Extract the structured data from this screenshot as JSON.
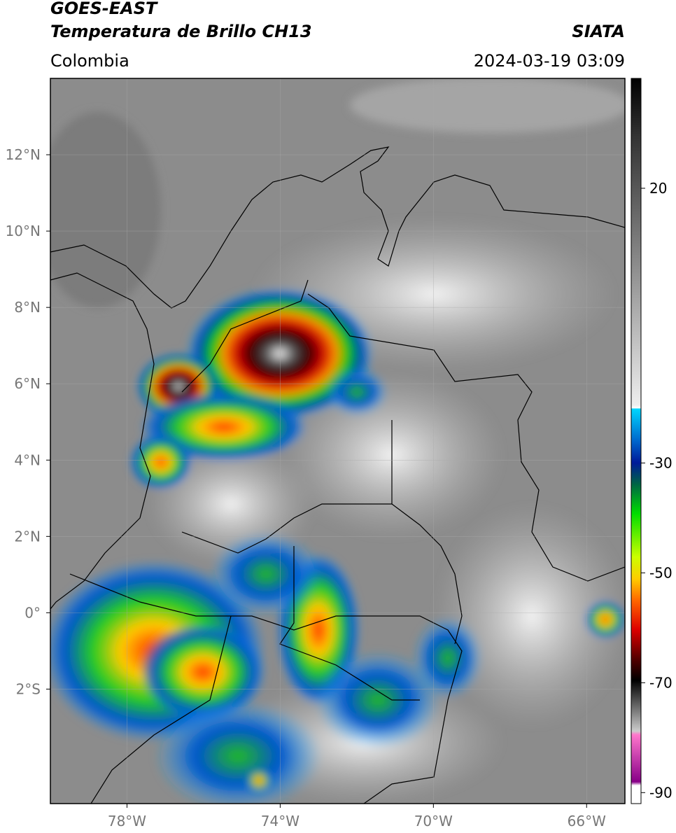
{
  "header": {
    "title": "GOES-EAST",
    "subtitle": "Temperatura de Brillo CH13",
    "source": "SIATA",
    "region": "Colombia",
    "timestamp": "2024-03-19 03:09"
  },
  "map": {
    "xlim": [
      -80,
      -65
    ],
    "ylim": [
      -5,
      14
    ],
    "xticks": [
      {
        "value": -78,
        "label": "78°W"
      },
      {
        "value": -74,
        "label": "74°W"
      },
      {
        "value": -70,
        "label": "70°W"
      },
      {
        "value": -66,
        "label": "66°W"
      }
    ],
    "yticks": [
      {
        "value": 12,
        "label": "12°N"
      },
      {
        "value": 10,
        "label": "10°N"
      },
      {
        "value": 8,
        "label": "8°N"
      },
      {
        "value": 6,
        "label": "6°N"
      },
      {
        "value": 4,
        "label": "4°N"
      },
      {
        "value": 2,
        "label": "2°N"
      },
      {
        "value": 0,
        "label": "0°"
      },
      {
        "value": -2,
        "label": "2°S"
      }
    ]
  },
  "colorbar": {
    "range": [
      -92,
      40
    ],
    "ticks": [
      20,
      -30,
      -50,
      -70,
      -90
    ]
  }
}
